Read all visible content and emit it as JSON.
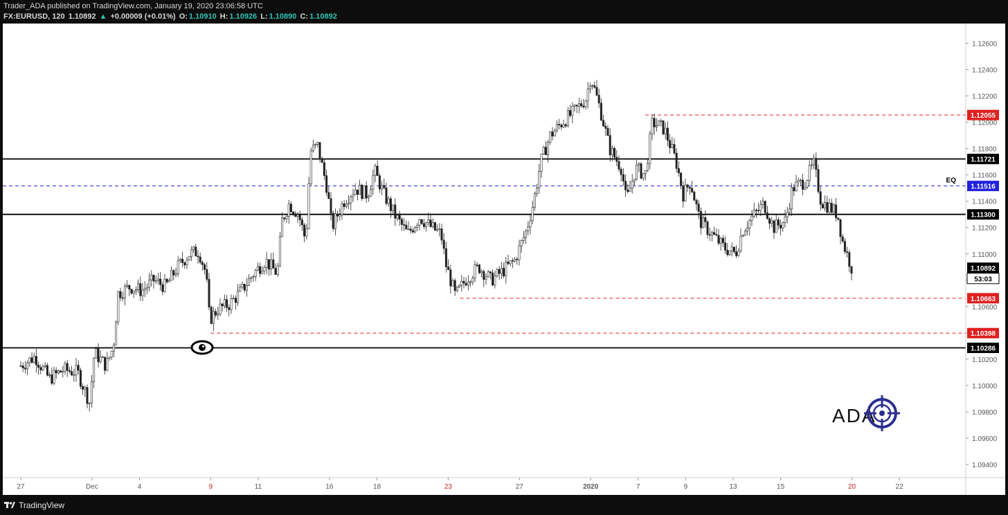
{
  "header": {
    "published": "Trader_ADA published on TradingView.com, January 19, 2020 23:06:58 UTC",
    "symbol": "FX:EURUSD, 120",
    "last": "1.10892",
    "change_arrow": "▲",
    "change": "+0.00009 (+0.01%)",
    "o_label": "O:",
    "o": "1.10910",
    "h_label": "H:",
    "h": "1.10926",
    "l_label": "L:",
    "l": "1.10890",
    "c_label": "C:",
    "c": "1.10892"
  },
  "footer": {
    "brand": "TradingView",
    "logo_icon": "tradingview-logo-icon"
  },
  "watermark": {
    "text": "ADA",
    "icon": "crosshair-target-icon"
  },
  "eye_icon": "eye-icon",
  "chart_data": {
    "type": "candlestick",
    "symbol": "EURUSD",
    "interval": "120",
    "ylim": [
      1.093,
      1.1275
    ],
    "y_ticks": [
      "1.12600",
      "1.12400",
      "1.12200",
      "1.12000",
      "1.11800",
      "1.11600",
      "1.11400",
      "1.11200",
      "1.11000",
      "1.10800",
      "1.10600",
      "1.10400",
      "1.10200",
      "1.10000",
      "1.09800",
      "1.09600",
      "1.09400"
    ],
    "x_ticks": [
      {
        "label": "27",
        "day": 0,
        "color": "#555555"
      },
      {
        "label": "Dec",
        "day": 3,
        "color": "#555555"
      },
      {
        "label": "4",
        "day": 5,
        "color": "#555555"
      },
      {
        "label": "9",
        "day": 8,
        "color": "#cc2222"
      },
      {
        "label": "11",
        "day": 10,
        "color": "#555555"
      },
      {
        "label": "16",
        "day": 13,
        "color": "#555555"
      },
      {
        "label": "18",
        "day": 15,
        "color": "#555555"
      },
      {
        "label": "23",
        "day": 18,
        "color": "#cc2222"
      },
      {
        "label": "27",
        "day": 21,
        "color": "#555555"
      },
      {
        "label": "2020",
        "day": 24,
        "color": "#555555"
      },
      {
        "label": "7",
        "day": 26,
        "color": "#555555"
      },
      {
        "label": "9",
        "day": 28,
        "color": "#555555"
      },
      {
        "label": "13",
        "day": 30,
        "color": "#555555"
      },
      {
        "label": "15",
        "day": 32,
        "color": "#555555"
      },
      {
        "label": "20",
        "day": 35,
        "color": "#cc2222"
      },
      {
        "label": "22",
        "day": 37,
        "color": "#555555"
      }
    ],
    "levels": [
      {
        "price": 1.11721,
        "label": "1.11721",
        "style": "solid",
        "color": "#000000",
        "start_day": 0
      },
      {
        "price": 1.11516,
        "label": "1.11516",
        "style": "dashed",
        "color": "#2222dd",
        "start_day": 0,
        "annotation": "EQ"
      },
      {
        "price": 1.113,
        "label": "1.11300",
        "style": "solid",
        "color": "#000000",
        "start_day": 0
      },
      {
        "price": 1.10286,
        "label": "1.10286",
        "style": "solid",
        "color": "#000000",
        "start_day": 0
      },
      {
        "price": 1.12055,
        "label": "1.12055",
        "style": "dashed",
        "color": "#ee2222",
        "start_day": 26.3
      },
      {
        "price": 1.10663,
        "label": "1.10663",
        "style": "dashed",
        "color": "#ee2222",
        "start_day": 18.5
      },
      {
        "price": 1.10398,
        "label": "1.10398",
        "style": "dashed",
        "color": "#ee2222",
        "start_day": 8.0
      }
    ],
    "last_price": {
      "price": 1.10892,
      "label": "1.10892",
      "countdown": "53:03"
    },
    "path": [
      [
        0,
        1.1015
      ],
      [
        0.6,
        1.1022
      ],
      [
        1.2,
        1.1005
      ],
      [
        1.8,
        1.1012
      ],
      [
        2.4,
        1.101
      ],
      [
        2.9,
        1.0987
      ],
      [
        3.1,
        1.1025
      ],
      [
        3.6,
        1.1015
      ],
      [
        3.9,
        1.103
      ],
      [
        4.1,
        1.107
      ],
      [
        4.6,
        1.1075
      ],
      [
        5.1,
        1.1072
      ],
      [
        5.6,
        1.108
      ],
      [
        6.1,
        1.1075
      ],
      [
        6.6,
        1.109
      ],
      [
        7.1,
        1.11
      ],
      [
        7.5,
        1.1102
      ],
      [
        7.8,
        1.1085
      ],
      [
        7.95,
        1.105
      ],
      [
        8.3,
        1.1058
      ],
      [
        8.8,
        1.1062
      ],
      [
        9.3,
        1.1072
      ],
      [
        9.8,
        1.1085
      ],
      [
        10.3,
        1.1095
      ],
      [
        10.8,
        1.1085
      ],
      [
        11.0,
        1.1125
      ],
      [
        11.3,
        1.1138
      ],
      [
        11.7,
        1.113
      ],
      [
        12.0,
        1.111
      ],
      [
        12.2,
        1.1178
      ],
      [
        12.5,
        1.1182
      ],
      [
        12.9,
        1.115
      ],
      [
        13.1,
        1.112
      ],
      [
        13.6,
        1.114
      ],
      [
        14.1,
        1.115
      ],
      [
        14.6,
        1.1145
      ],
      [
        14.9,
        1.1163
      ],
      [
        15.3,
        1.1145
      ],
      [
        15.8,
        1.1128
      ],
      [
        16.3,
        1.1115
      ],
      [
        16.8,
        1.1128
      ],
      [
        17.3,
        1.112
      ],
      [
        17.7,
        1.1115
      ],
      [
        17.9,
        1.1092
      ],
      [
        18.3,
        1.1068
      ],
      [
        18.8,
        1.1082
      ],
      [
        19.3,
        1.109
      ],
      [
        19.8,
        1.108
      ],
      [
        20.3,
        1.1087
      ],
      [
        20.8,
        1.1095
      ],
      [
        21.3,
        1.1118
      ],
      [
        21.6,
        1.114
      ],
      [
        21.9,
        1.117
      ],
      [
        22.3,
        1.119
      ],
      [
        22.8,
        1.12
      ],
      [
        23.3,
        1.1208
      ],
      [
        23.8,
        1.1218
      ],
      [
        24.0,
        1.1235
      ],
      [
        24.4,
        1.121
      ],
      [
        24.8,
        1.118
      ],
      [
        25.3,
        1.1165
      ],
      [
        25.5,
        1.114
      ],
      [
        25.9,
        1.1165
      ],
      [
        26.3,
        1.116
      ],
      [
        26.6,
        1.12
      ],
      [
        27.1,
        1.1195
      ],
      [
        27.6,
        1.117
      ],
      [
        27.9,
        1.1145
      ],
      [
        28.2,
        1.1155
      ],
      [
        28.6,
        1.1125
      ],
      [
        29.1,
        1.1115
      ],
      [
        29.6,
        1.1105
      ],
      [
        30.1,
        1.11
      ],
      [
        30.4,
        1.1118
      ],
      [
        30.8,
        1.1128
      ],
      [
        31.3,
        1.1138
      ],
      [
        31.7,
        1.112
      ],
      [
        32.2,
        1.1125
      ],
      [
        32.5,
        1.115
      ],
      [
        33.0,
        1.1155
      ],
      [
        33.4,
        1.1168
      ],
      [
        33.7,
        1.114
      ],
      [
        34.1,
        1.1135
      ],
      [
        34.4,
        1.113
      ],
      [
        34.6,
        1.111
      ],
      [
        35.0,
        1.1089
      ]
    ]
  }
}
